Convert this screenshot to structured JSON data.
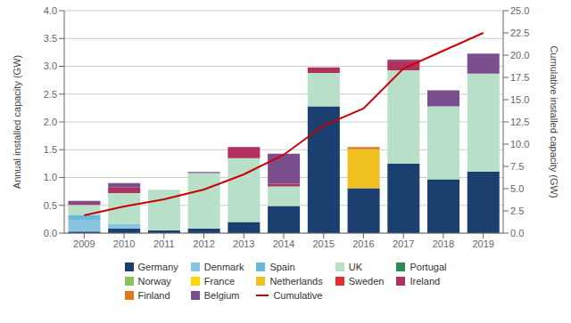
{
  "chart_data": {
    "type": "bar",
    "stacked": true,
    "grid": true,
    "ylabel": "Annual installed capacity (GW)",
    "y2label": "Cumulative installed capacity (GW)",
    "categories": [
      "2009",
      "2010",
      "2011",
      "2012",
      "2013",
      "2014",
      "2015",
      "2016",
      "2017",
      "2018",
      "2019"
    ],
    "ylim": [
      0,
      4.0
    ],
    "yticks": [
      {
        "value": 0,
        "label": "0.0"
      },
      0.5,
      {
        "value": 1.0,
        "label": "1.0"
      },
      1.5,
      {
        "value": 2.0,
        "label": "2.0"
      },
      2.5,
      {
        "value": 3.0,
        "label": "3.0"
      },
      3.5,
      {
        "value": 4.0,
        "label": "4.0"
      }
    ],
    "y2lim": [
      0,
      25.0
    ],
    "y2ticks": [
      {
        "value": 0,
        "label": "0.0"
      },
      2.5,
      {
        "value": 5.0,
        "label": "5.0"
      },
      7.5,
      {
        "value": 10.0,
        "label": "10.0"
      },
      12.5,
      {
        "value": 15.0,
        "label": "15.0"
      },
      17.5,
      {
        "value": 20.0,
        "label": "20.0"
      },
      22.5,
      {
        "value": 25.0,
        "label": "25.0"
      }
    ],
    "series": [
      {
        "name": "Germany",
        "color": "#1b3f6e",
        "values": [
          0.03,
          0.08,
          0.05,
          0.08,
          0.2,
          0.49,
          2.28,
          0.81,
          1.25,
          0.97,
          1.11
        ]
      },
      {
        "name": "Denmark",
        "color": "#89c4e1",
        "values": [
          0.2,
          0.09,
          0.0,
          0.0,
          0.0,
          0.0,
          0.0,
          0.0,
          0.0,
          0.0,
          0.0
        ]
      },
      {
        "name": "Spain",
        "color": "#6ab9d8",
        "values": [
          0.1,
          0.0,
          0.0,
          0.0,
          0.0,
          0.0,
          0.0,
          0.0,
          0.0,
          0.0,
          0.0
        ]
      },
      {
        "name": "UK",
        "color": "#b8dfc8",
        "values": [
          0.18,
          0.55,
          0.73,
          1.0,
          1.15,
          0.35,
          0.6,
          0.0,
          1.68,
          1.31,
          1.76
        ]
      },
      {
        "name": "Portugal",
        "color": "#2e8b57",
        "values": [
          0.0,
          0.0,
          0.0,
          0.0,
          0.0,
          0.0,
          0.0,
          0.0,
          0.0,
          0.0,
          0.0
        ]
      },
      {
        "name": "Norway",
        "color": "#90c060",
        "values": [
          0.0,
          0.0,
          0.0,
          0.0,
          0.0,
          0.0,
          0.0,
          0.0,
          0.0,
          0.0,
          0.0
        ]
      },
      {
        "name": "France",
        "color": "#ffd700",
        "values": [
          0.0,
          0.0,
          0.0,
          0.0,
          0.0,
          0.0,
          0.0,
          0.0,
          0.0,
          0.0,
          0.0
        ]
      },
      {
        "name": "Netherlands",
        "color": "#f0c020",
        "values": [
          0.0,
          0.0,
          0.0,
          0.0,
          0.0,
          0.0,
          0.0,
          0.7,
          0.0,
          0.0,
          0.0
        ]
      },
      {
        "name": "Sweden",
        "color": "#e03030",
        "values": [
          0.0,
          0.0,
          0.0,
          0.0,
          0.0,
          0.0,
          0.0,
          0.0,
          0.0,
          0.0,
          0.0
        ]
      },
      {
        "name": "Ireland",
        "color": "#b03060",
        "values": [
          0.02,
          0.1,
          0.0,
          0.0,
          0.2,
          0.05,
          0.1,
          0.0,
          0.17,
          0.0,
          0.0
        ]
      },
      {
        "name": "Finland",
        "color": "#e07820",
        "values": [
          0.0,
          0.0,
          0.0,
          0.0,
          0.0,
          0.0,
          0.0,
          0.04,
          0.0,
          0.0,
          0.0
        ]
      },
      {
        "name": "Belgium",
        "color": "#7b4f8e",
        "values": [
          0.05,
          0.08,
          0.0,
          0.02,
          0.0,
          0.54,
          0.0,
          0.0,
          0.02,
          0.29,
          0.36
        ]
      },
      {
        "name": "Cumulative",
        "type": "line",
        "axis": "y2",
        "color": "#cc0000",
        "values": [
          2.0,
          3.0,
          3.8,
          4.9,
          6.6,
          8.8,
          12.1,
          14.0,
          18.5,
          20.5,
          22.5
        ]
      }
    ]
  }
}
